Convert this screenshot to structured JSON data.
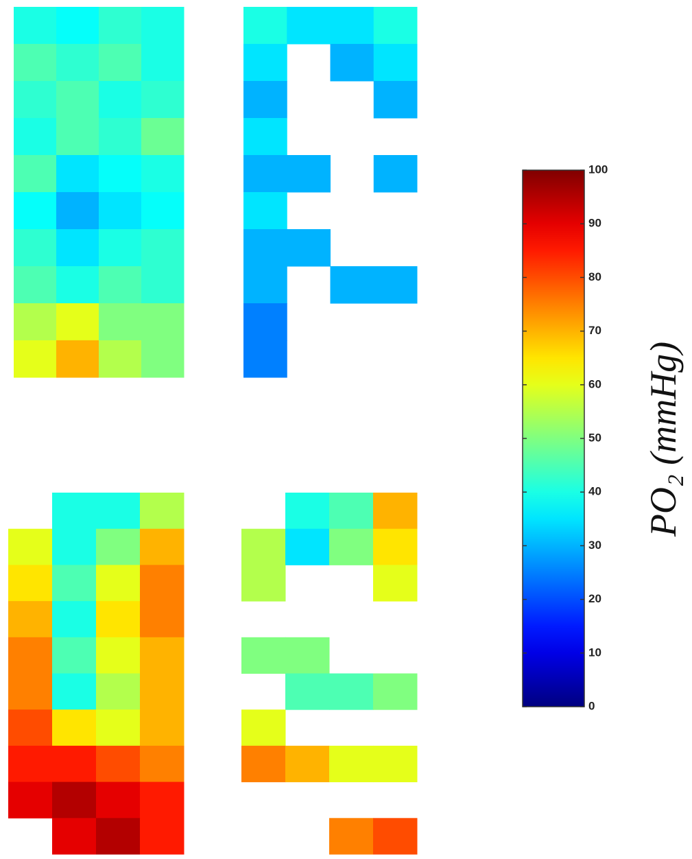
{
  "chart_data": {
    "type": "heatmap",
    "colorbar": {
      "label": "PO₂ (mmHg)",
      "clim": [
        0,
        100
      ],
      "ticks": [
        0,
        10,
        20,
        30,
        40,
        50,
        60,
        70,
        80,
        90,
        100
      ],
      "colormap": "jet"
    },
    "panels": [
      {
        "values": [
          [
            40,
            38,
            42,
            40
          ],
          [
            45,
            42,
            45,
            40
          ],
          [
            42,
            45,
            40,
            42
          ],
          [
            40,
            45,
            42,
            48
          ],
          [
            45,
            35,
            38,
            40
          ],
          [
            38,
            30,
            35,
            38
          ],
          [
            42,
            35,
            40,
            42
          ],
          [
            45,
            40,
            45,
            42
          ],
          [
            55,
            60,
            50,
            50
          ],
          [
            60,
            70,
            55,
            50
          ]
        ]
      },
      {
        "values": [
          [
            40,
            35,
            35,
            40
          ],
          [
            35,
            null,
            30,
            35
          ],
          [
            30,
            null,
            null,
            30
          ],
          [
            35,
            null,
            null,
            null
          ],
          [
            30,
            30,
            null,
            30
          ],
          [
            35,
            null,
            null,
            null
          ],
          [
            30,
            30,
            null,
            null
          ],
          [
            30,
            null,
            30,
            30
          ],
          [
            25,
            null,
            null,
            null
          ],
          [
            25,
            null,
            null,
            null
          ]
        ]
      },
      {
        "values": [
          [
            null,
            40,
            40,
            55
          ],
          [
            60,
            40,
            50,
            70
          ],
          [
            65,
            45,
            60,
            75
          ],
          [
            70,
            40,
            65,
            75
          ],
          [
            75,
            45,
            60,
            70
          ],
          [
            75,
            40,
            55,
            70
          ],
          [
            80,
            65,
            60,
            70
          ],
          [
            85,
            85,
            80,
            75
          ],
          [
            90,
            95,
            90,
            85
          ],
          [
            null,
            90,
            95,
            85
          ]
        ]
      },
      {
        "values": [
          [
            null,
            40,
            45,
            70
          ],
          [
            55,
            35,
            50,
            65
          ],
          [
            55,
            null,
            null,
            60
          ],
          [
            null,
            null,
            null,
            null
          ],
          [
            50,
            50,
            null,
            null
          ],
          [
            null,
            45,
            45,
            50
          ],
          [
            60,
            null,
            null,
            null
          ],
          [
            75,
            70,
            60,
            60
          ],
          [
            null,
            null,
            null,
            null
          ],
          [
            null,
            null,
            75,
            80
          ]
        ]
      }
    ]
  }
}
